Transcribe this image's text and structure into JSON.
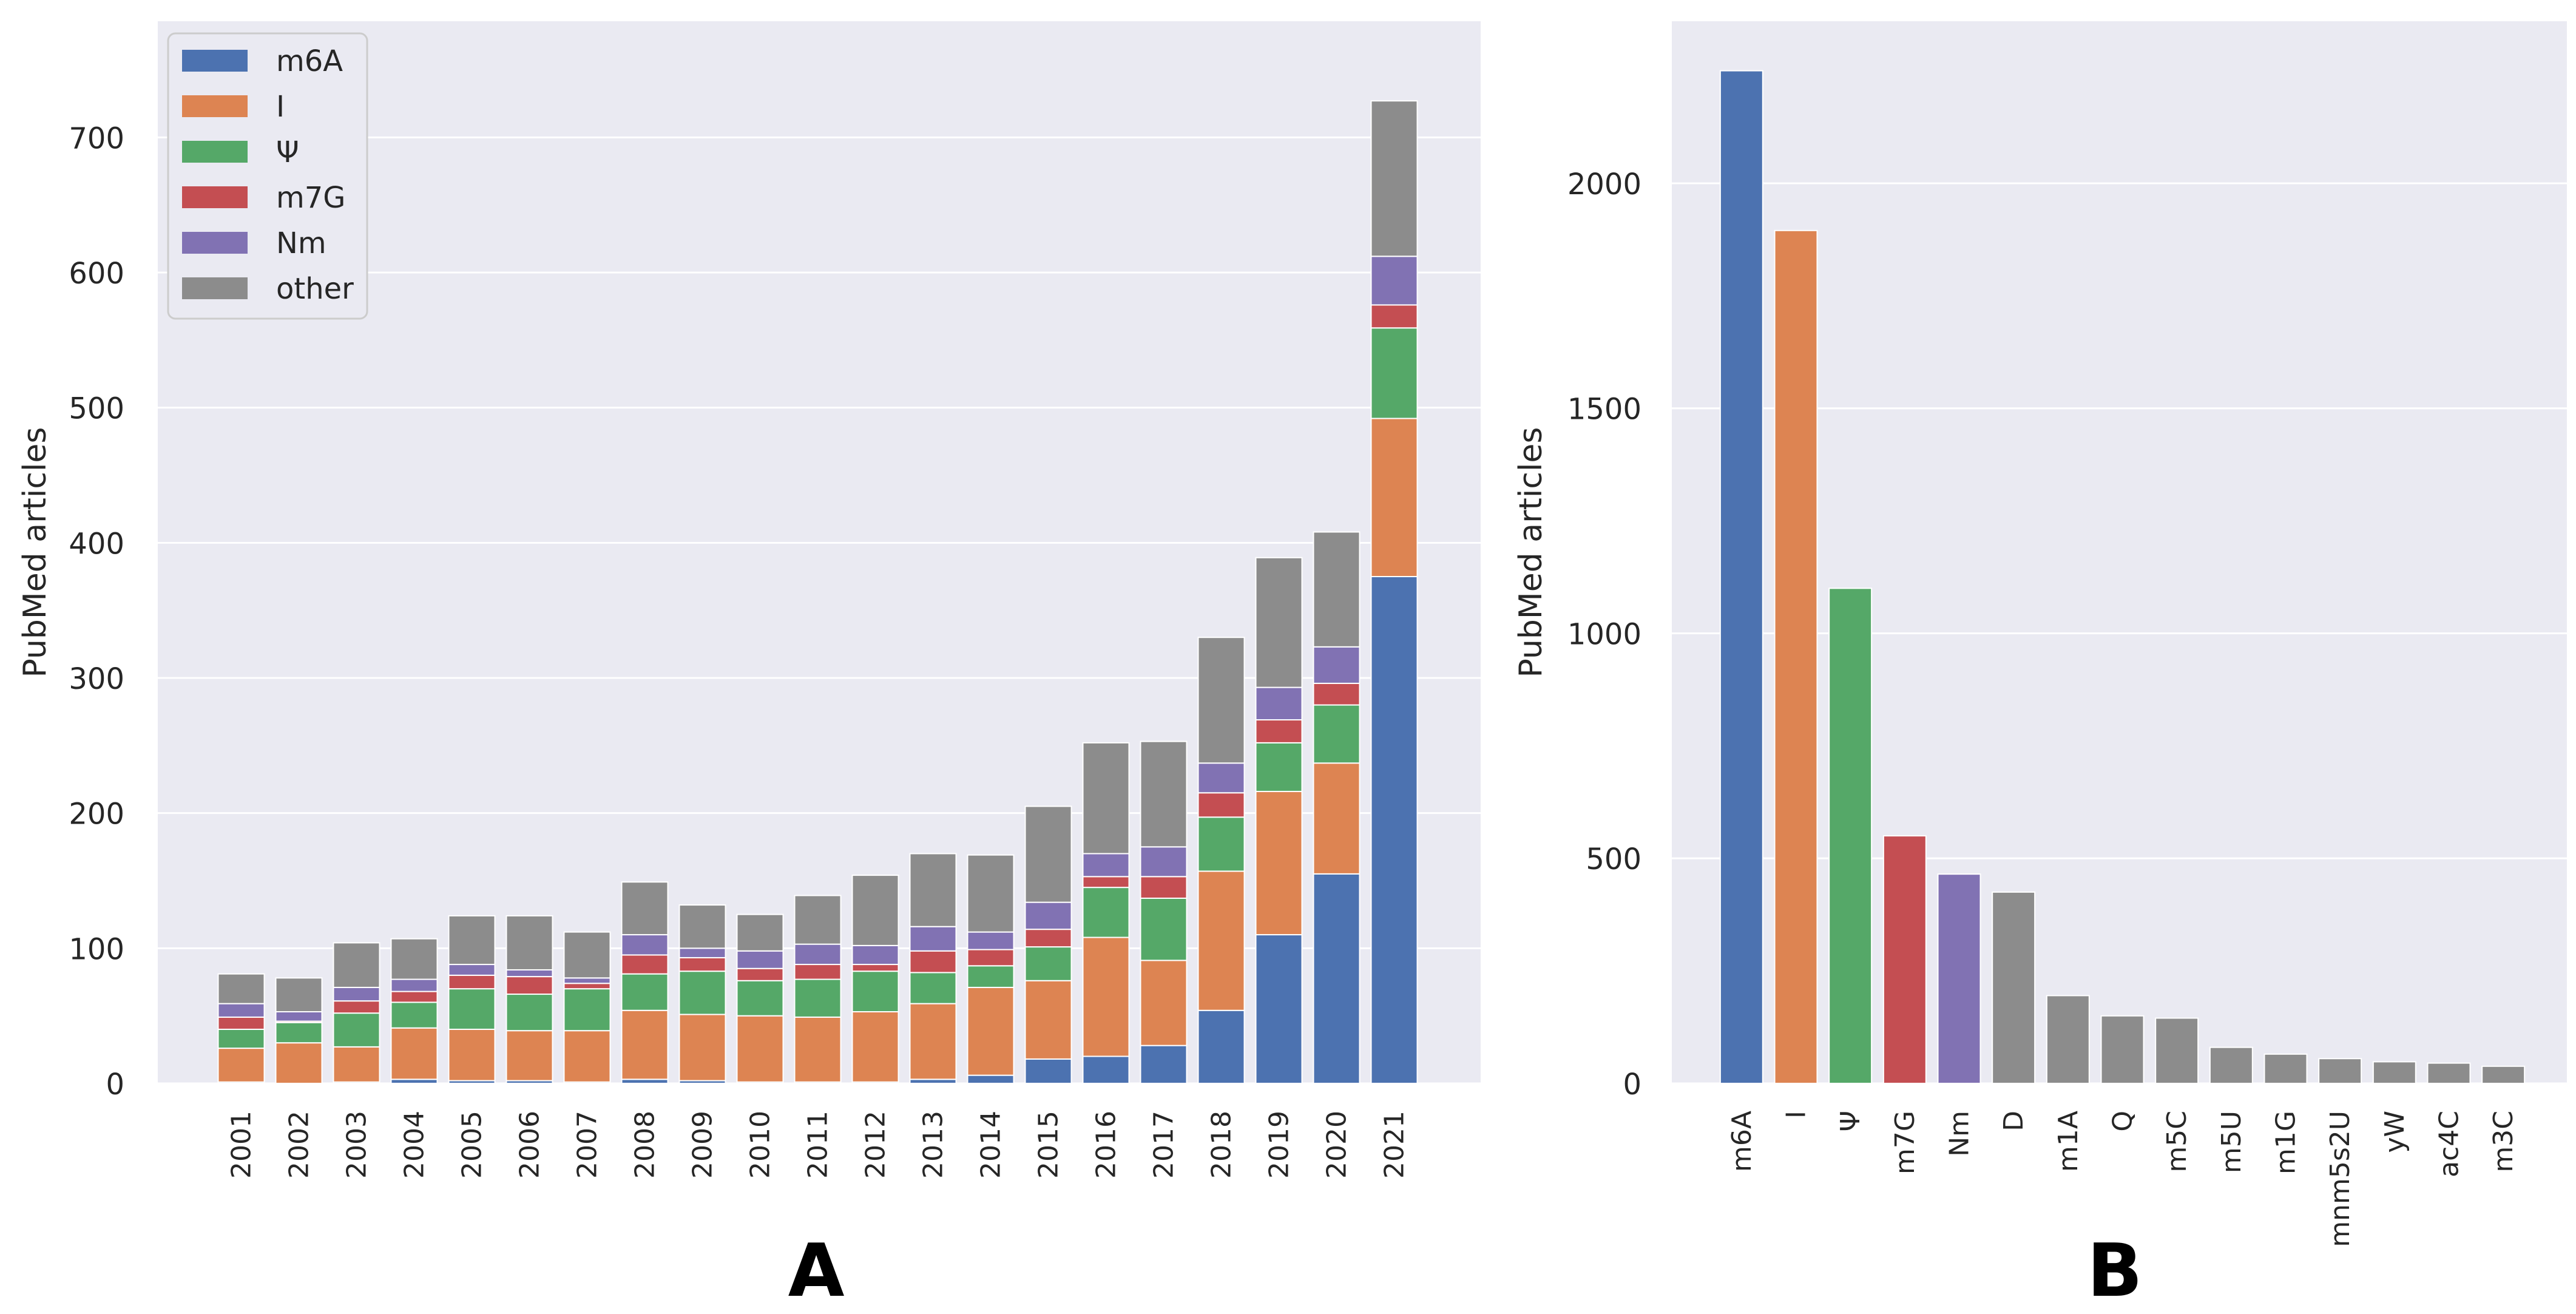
{
  "colors": {
    "m6A": "#4c72b0",
    "I": "#dd8452",
    "psi": "#55a868",
    "m7G": "#c44e52",
    "Nm": "#8172b3",
    "other": "#8c8c8c",
    "plot_background": "#eaeaf2",
    "grid": "#ffffff"
  },
  "chart_data": [
    {
      "type": "bar",
      "stacked": true,
      "panel_label": "A",
      "title": "",
      "xlabel": "",
      "ylabel": "PubMed articles",
      "ylim": [
        0,
        750
      ],
      "yticks": [
        0,
        100,
        200,
        300,
        400,
        500,
        600,
        700
      ],
      "grid": true,
      "legend_position": "top-left",
      "categories": [
        "2001",
        "2002",
        "2003",
        "2004",
        "2005",
        "2006",
        "2007",
        "2008",
        "2009",
        "2010",
        "2011",
        "2012",
        "2013",
        "2014",
        "2015",
        "2016",
        "2017",
        "2018",
        "2019",
        "2020",
        "2021"
      ],
      "series": [
        {
          "name": "m6A",
          "color_key": "m6A",
          "values": [
            1,
            0,
            1,
            3,
            2,
            2,
            1,
            3,
            2,
            1,
            1,
            1,
            3,
            6,
            18,
            20,
            28,
            54,
            110,
            155,
            375
          ]
        },
        {
          "name": "I",
          "color_key": "I",
          "values": [
            25,
            30,
            26,
            38,
            38,
            37,
            38,
            51,
            49,
            49,
            48,
            52,
            56,
            65,
            58,
            88,
            63,
            103,
            106,
            82,
            117
          ]
        },
        {
          "name": "Ψ",
          "color_key": "psi",
          "values": [
            14,
            15,
            25,
            19,
            30,
            27,
            31,
            27,
            32,
            26,
            28,
            30,
            23,
            16,
            25,
            37,
            46,
            40,
            36,
            43,
            67
          ]
        },
        {
          "name": "m7G",
          "color_key": "m7G",
          "values": [
            9,
            1,
            9,
            8,
            10,
            13,
            4,
            14,
            10,
            9,
            11,
            5,
            16,
            12,
            13,
            8,
            16,
            18,
            17,
            16,
            17
          ]
        },
        {
          "name": "Nm",
          "color_key": "Nm",
          "values": [
            10,
            7,
            10,
            9,
            8,
            5,
            4,
            15,
            7,
            13,
            15,
            14,
            18,
            13,
            20,
            17,
            22,
            22,
            24,
            27,
            36
          ]
        },
        {
          "name": "other",
          "color_key": "other",
          "values": [
            22,
            25,
            33,
            30,
            36,
            40,
            34,
            39,
            32,
            27,
            36,
            52,
            54,
            57,
            71,
            82,
            78,
            93,
            96,
            85,
            115
          ]
        }
      ]
    },
    {
      "type": "bar",
      "panel_label": "B",
      "title": "",
      "xlabel": "",
      "ylabel": "PubMed articles",
      "ylim": [
        0,
        2360
      ],
      "yticks": [
        0,
        500,
        1000,
        1500,
        2000
      ],
      "grid": true,
      "categories": [
        "m6A",
        "I",
        "Ψ",
        "m7G",
        "Nm",
        "D",
        "m1A",
        "Q",
        "m5C",
        "m5U",
        "m1G",
        "mnm5s2U",
        "yW",
        "ac4C",
        "m3C"
      ],
      "values": [
        2250,
        1895,
        1100,
        550,
        465,
        425,
        195,
        150,
        145,
        80,
        65,
        55,
        48,
        45,
        38
      ],
      "color_keys": [
        "m6A",
        "I",
        "psi",
        "m7G",
        "Nm",
        "other",
        "other",
        "other",
        "other",
        "other",
        "other",
        "other",
        "other",
        "other",
        "other"
      ]
    }
  ]
}
